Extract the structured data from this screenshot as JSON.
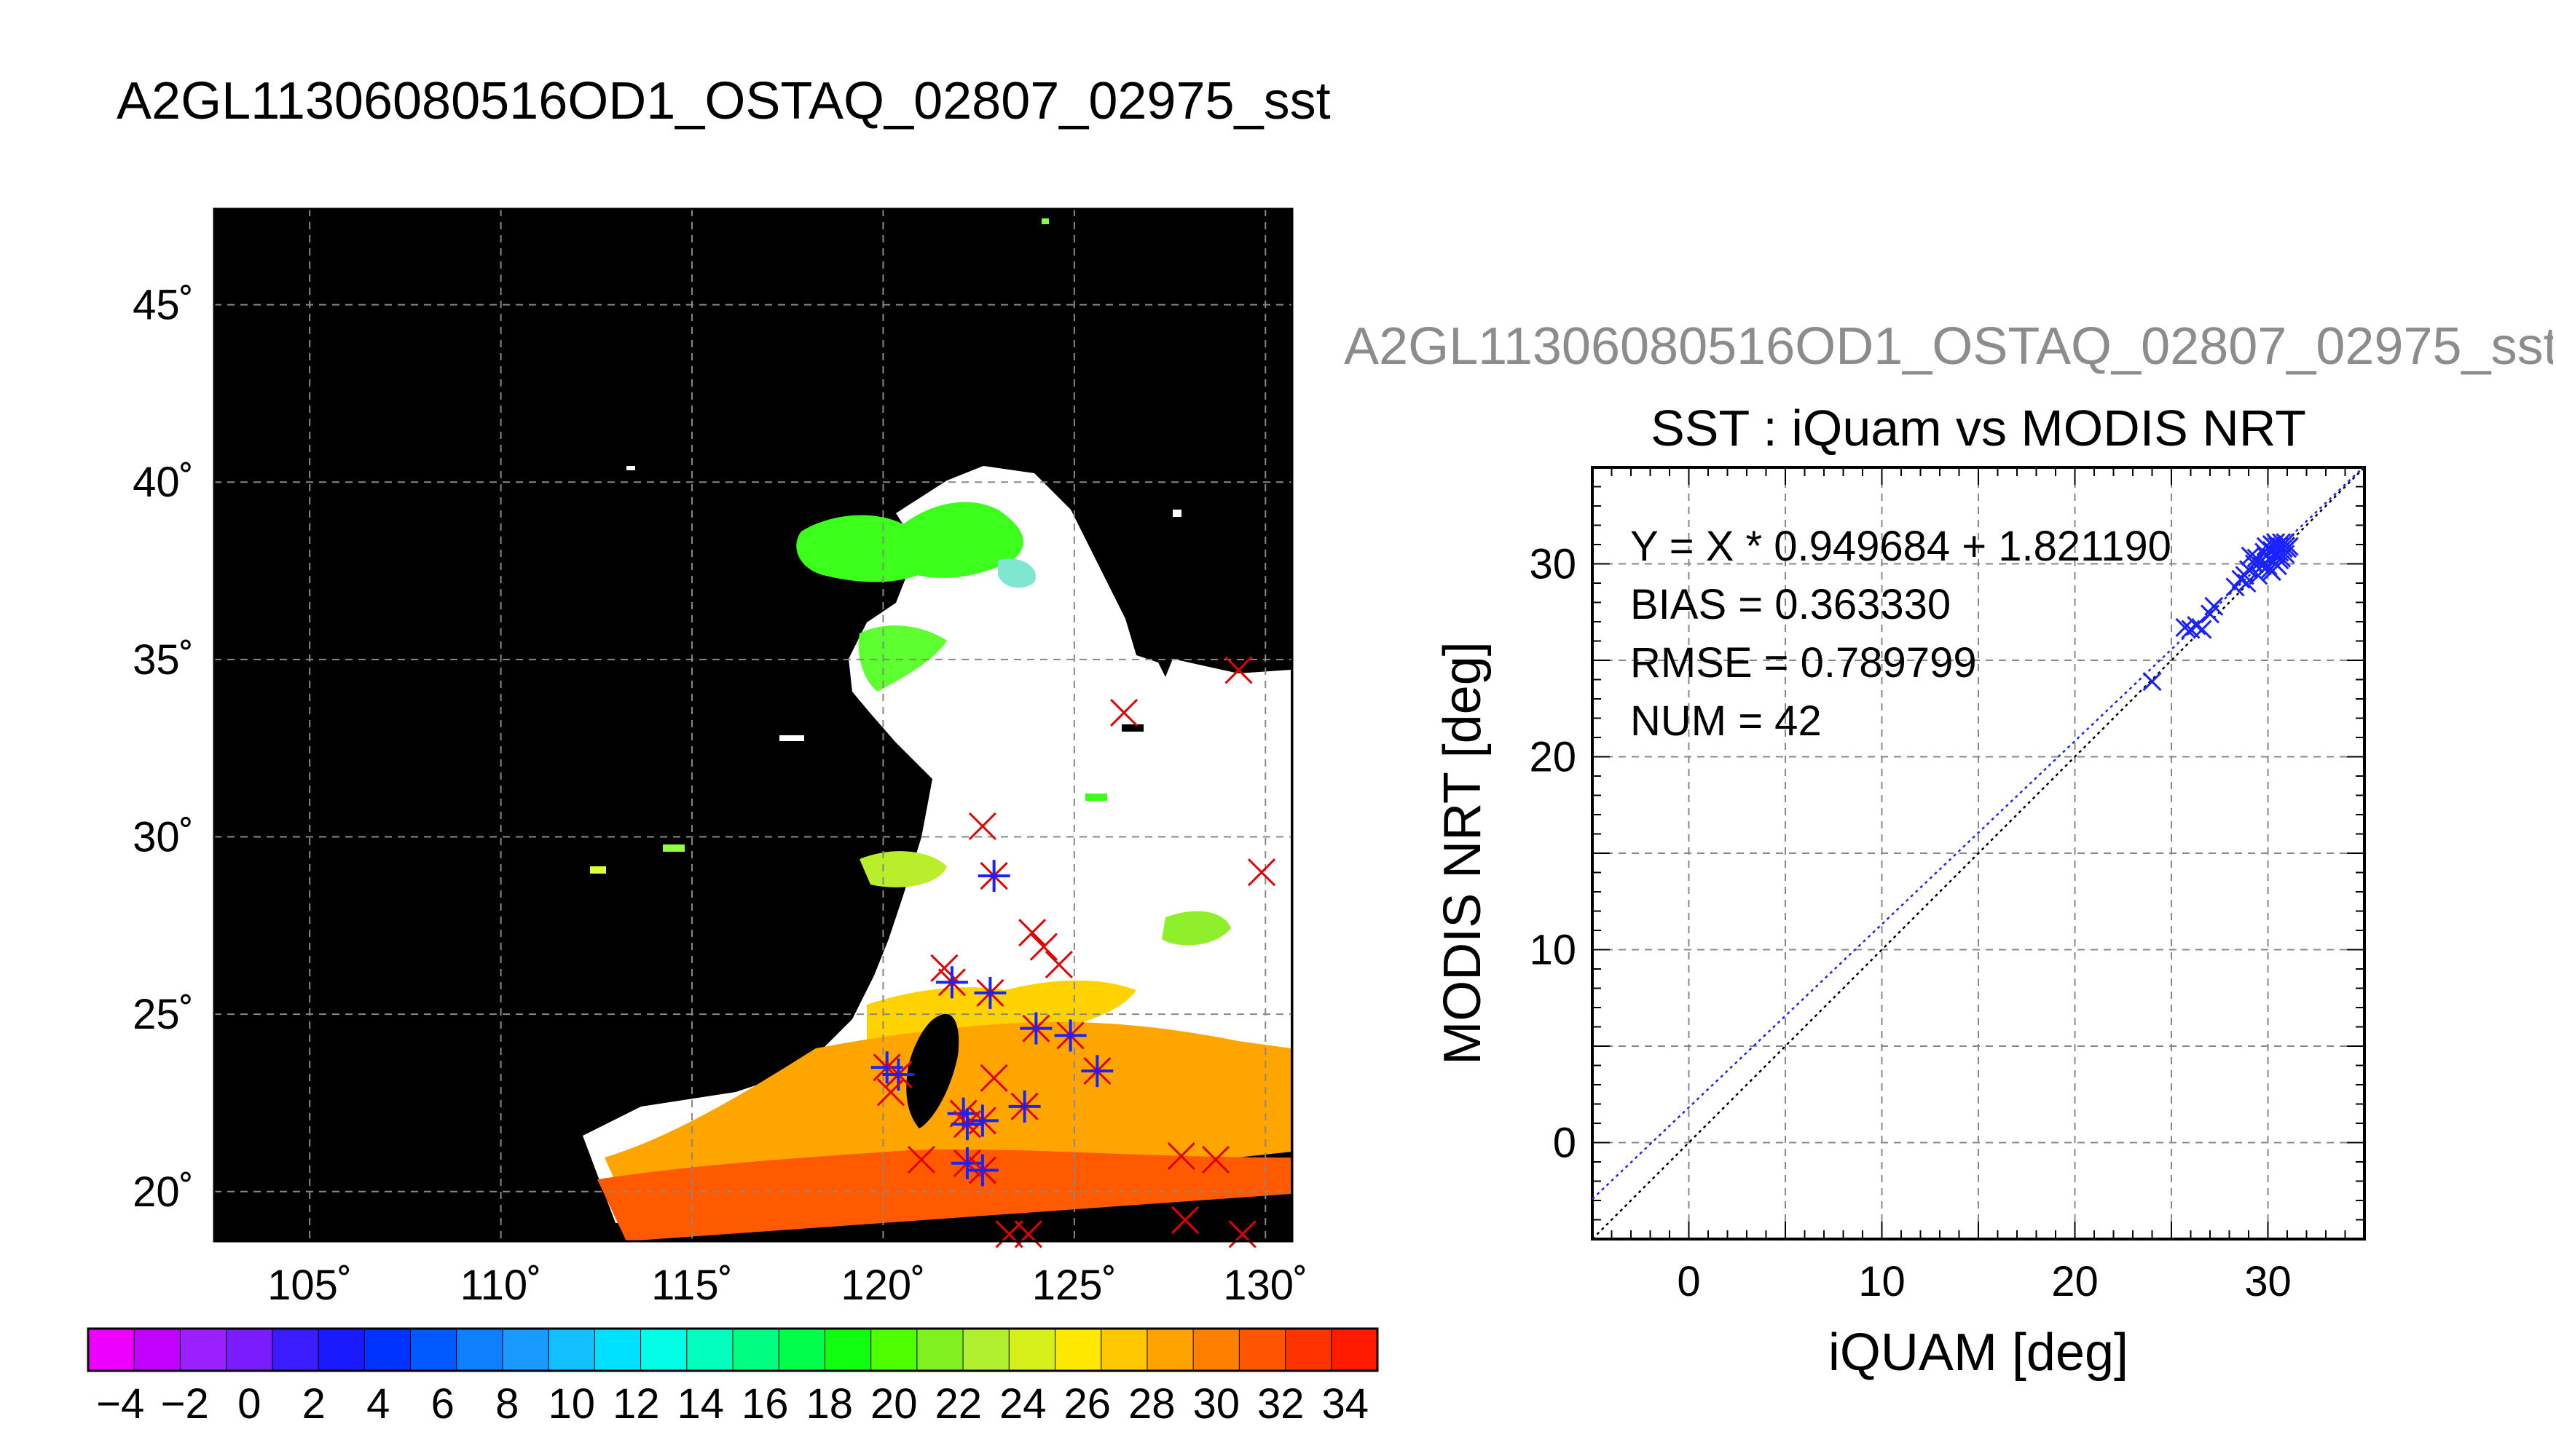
{
  "main_title": "A2GL11306080516OD1_OSTAQ_02807_02975_sst",
  "right_title": "A2GL11306080516OD1_OSTAQ_02807_02975_sst",
  "chart_data": [
    {
      "type": "map",
      "title": "A2GL11306080516OD1_OSTAQ_02807_02975_sst",
      "lat_ticks": [
        "45˚",
        "40˚",
        "35˚",
        "30˚",
        "25˚",
        "20˚"
      ],
      "lon_ticks": [
        "105˚",
        "110˚",
        "115˚",
        "120˚",
        "125˚",
        "130˚"
      ],
      "lat_values": [
        45,
        40,
        35,
        30,
        25,
        20
      ],
      "lon_values": [
        105,
        110,
        115,
        120,
        125,
        130
      ],
      "lon_range": [
        102.5,
        130.7
      ],
      "lat_range": [
        18.6,
        47.7
      ],
      "grid": true,
      "colorbar": {
        "labels": [
          "−4",
          "−2",
          "0",
          "2",
          "4",
          "6",
          "8",
          "10",
          "12",
          "14",
          "16",
          "18",
          "20",
          "22",
          "24",
          "26",
          "28",
          "30",
          "32",
          "34"
        ],
        "range": [
          -5,
          35
        ],
        "colors": [
          "#ee00ff",
          "#c200ff",
          "#9a20ff",
          "#7b1cff",
          "#3b1cff",
          "#1a1aff",
          "#0033ff",
          "#0059ff",
          "#0f7fff",
          "#1a99ff",
          "#12c0ff",
          "#00e0ff",
          "#00ffe6",
          "#00ffbd",
          "#00ff80",
          "#00ff4a",
          "#10ff10",
          "#4eff00",
          "#80f020",
          "#b0f030",
          "#d5ef1a",
          "#ffe800",
          "#ffc800",
          "#ffa200",
          "#ff8000",
          "#ff5500",
          "#ff3300",
          "#ff1a00"
        ]
      }
    },
    {
      "type": "scatter",
      "title": "SST : iQuam vs MODIS NRT",
      "xlabel": "iQUAM [deg]",
      "ylabel": "MODIS NRT [deg]",
      "xlim": [
        -5,
        35
      ],
      "ylim": [
        -5,
        35
      ],
      "xticks": [
        0,
        10,
        20,
        30
      ],
      "yticks": [
        0,
        10,
        20,
        30
      ],
      "grid": true,
      "stats": [
        "Y = X * 0.949684 + 1.821190",
        "BIAS = 0.363330",
        "RMSE = 0.789799",
        "NUM = 42"
      ],
      "fit": {
        "slope": 0.949684,
        "intercept": 1.82119
      },
      "points": [
        [
          24.0,
          23.9
        ],
        [
          25.7,
          26.7
        ],
        [
          26.0,
          26.6
        ],
        [
          26.3,
          26.8
        ],
        [
          26.6,
          26.6
        ],
        [
          27.0,
          27.4
        ],
        [
          27.2,
          27.8
        ],
        [
          28.3,
          28.8
        ],
        [
          28.6,
          29.2
        ],
        [
          28.9,
          29.0
        ],
        [
          29.0,
          29.7
        ],
        [
          29.1,
          30.4
        ],
        [
          29.3,
          30.0
        ],
        [
          29.5,
          29.4
        ],
        [
          29.6,
          30.1
        ],
        [
          29.8,
          30.6
        ],
        [
          29.9,
          30.9
        ],
        [
          30.0,
          29.9
        ],
        [
          30.1,
          30.3
        ],
        [
          30.2,
          30.7
        ],
        [
          30.2,
          31.0
        ],
        [
          30.3,
          30.1
        ],
        [
          30.4,
          30.5
        ],
        [
          30.5,
          30.9
        ],
        [
          30.5,
          29.9
        ],
        [
          30.6,
          30.6
        ],
        [
          30.7,
          30.3
        ],
        [
          30.7,
          31.1
        ],
        [
          30.8,
          30.8
        ],
        [
          30.9,
          30.5
        ],
        [
          30.9,
          31.1
        ],
        [
          31.0,
          30.8
        ],
        [
          30.2,
          29.6
        ],
        [
          29.7,
          29.9
        ],
        [
          30.4,
          31.1
        ],
        [
          29.4,
          30.3
        ],
        [
          30.1,
          29.7
        ],
        [
          30.6,
          30.2
        ],
        [
          29.9,
          30.4
        ],
        [
          30.3,
          30.9
        ],
        [
          28.8,
          29.4
        ],
        [
          31.1,
          30.9
        ]
      ]
    }
  ]
}
